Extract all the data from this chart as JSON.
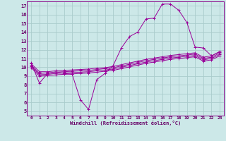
{
  "hours": [
    0,
    1,
    2,
    3,
    4,
    5,
    6,
    7,
    8,
    9,
    10,
    11,
    12,
    13,
    14,
    15,
    16,
    17,
    18,
    19,
    20,
    21,
    22,
    23
  ],
  "temp": [
    10.5,
    8.2,
    9.3,
    9.5,
    9.3,
    9.2,
    6.3,
    5.2,
    8.6,
    9.3,
    10.2,
    12.2,
    13.5,
    14.0,
    15.5,
    15.6,
    17.2,
    17.2,
    16.5,
    15.1,
    12.3,
    12.2,
    11.3,
    11.8
  ],
  "line2": [
    10.4,
    9.5,
    9.5,
    9.6,
    9.65,
    9.7,
    9.75,
    9.8,
    9.9,
    9.95,
    10.1,
    10.3,
    10.5,
    10.7,
    10.9,
    11.05,
    11.2,
    11.35,
    11.45,
    11.55,
    11.65,
    11.15,
    11.3,
    11.75
  ],
  "line3": [
    10.25,
    9.3,
    9.35,
    9.45,
    9.5,
    9.55,
    9.6,
    9.65,
    9.75,
    9.85,
    9.95,
    10.15,
    10.35,
    10.55,
    10.75,
    10.9,
    11.05,
    11.2,
    11.3,
    11.4,
    11.5,
    11.0,
    11.15,
    11.6
  ],
  "line4": [
    10.1,
    9.15,
    9.2,
    9.3,
    9.35,
    9.4,
    9.45,
    9.5,
    9.6,
    9.7,
    9.8,
    10.0,
    10.2,
    10.4,
    10.6,
    10.75,
    10.9,
    11.05,
    11.15,
    11.25,
    11.35,
    10.85,
    11.0,
    11.45
  ],
  "line5": [
    9.95,
    9.0,
    9.05,
    9.15,
    9.2,
    9.25,
    9.3,
    9.35,
    9.45,
    9.55,
    9.65,
    9.85,
    10.05,
    10.25,
    10.45,
    10.6,
    10.75,
    10.9,
    11.0,
    11.1,
    11.2,
    10.7,
    10.85,
    11.3
  ],
  "color": "#990099",
  "bg_color": "#cce8e8",
  "grid_color": "#aacccc",
  "xlabel": "Windchill (Refroidissement éolien,°C)",
  "ylim": [
    4.5,
    17.5
  ],
  "xlim": [
    -0.5,
    23.5
  ],
  "yticks": [
    5,
    6,
    7,
    8,
    9,
    10,
    11,
    12,
    13,
    14,
    15,
    16,
    17
  ],
  "xticks": [
    0,
    1,
    2,
    3,
    4,
    5,
    6,
    7,
    8,
    9,
    10,
    11,
    12,
    13,
    14,
    15,
    16,
    17,
    18,
    19,
    20,
    21,
    22,
    23
  ]
}
